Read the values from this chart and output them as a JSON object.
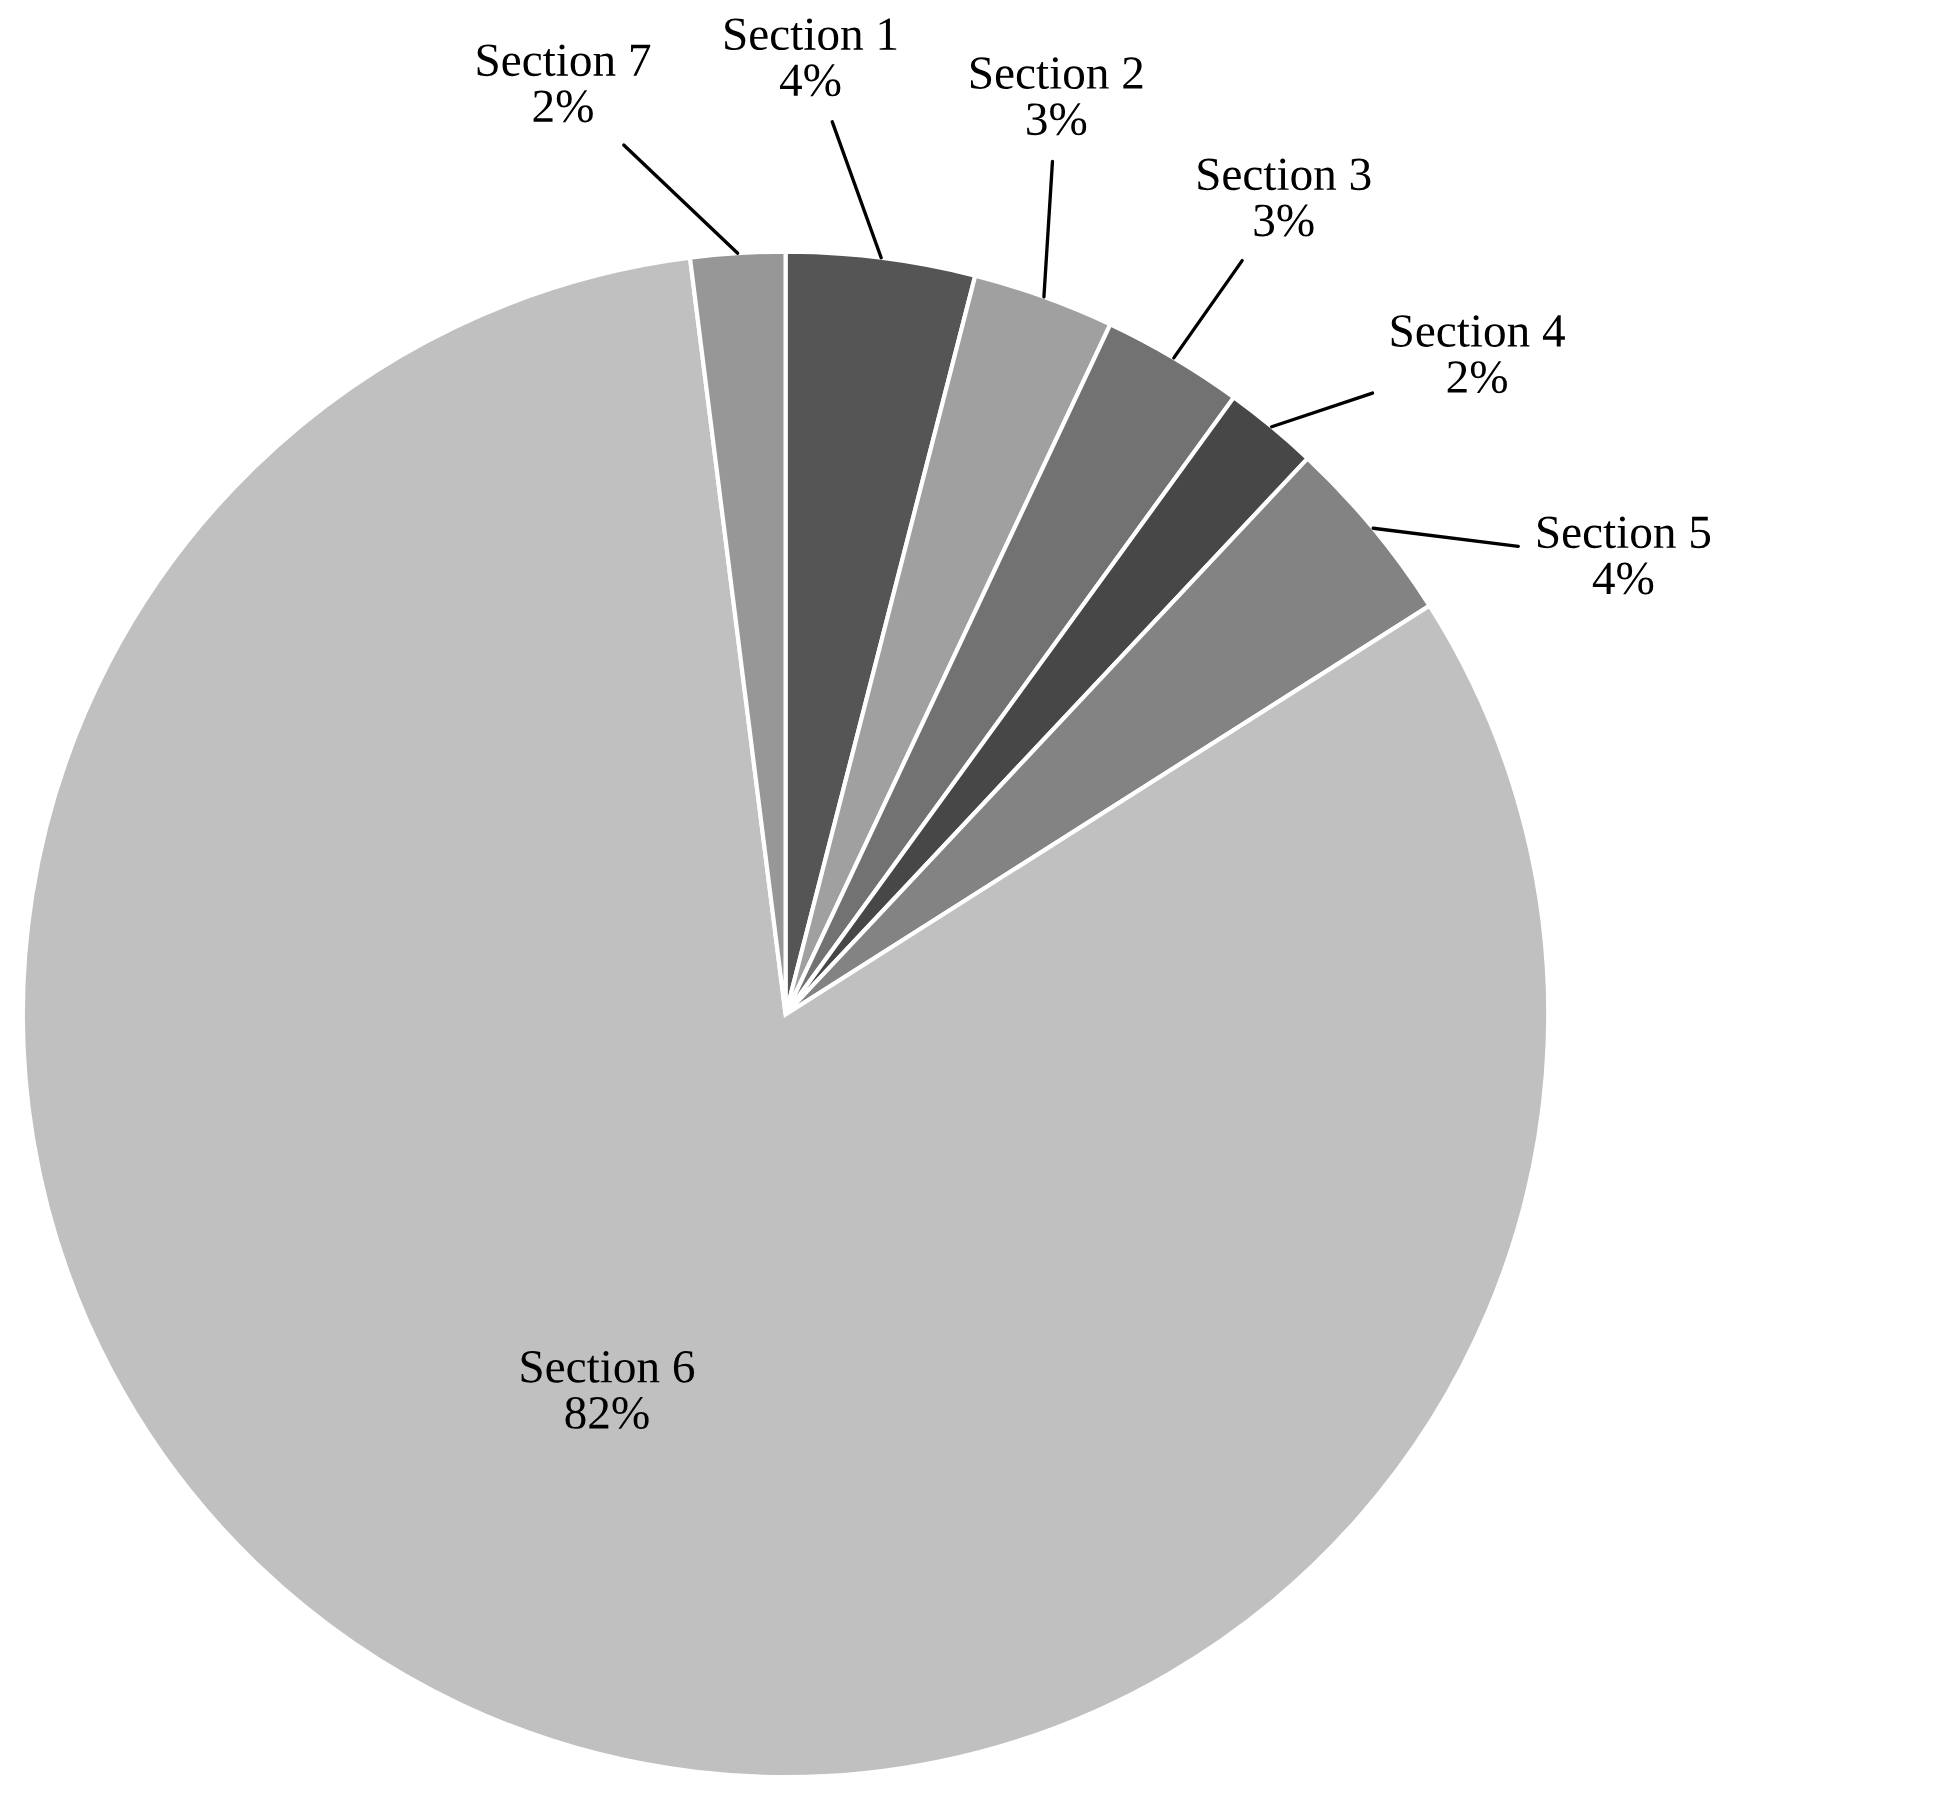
{
  "chart_data": {
    "type": "pie",
    "categories": [
      "Section 1",
      "Section 2",
      "Section 3",
      "Section 4",
      "Section 5",
      "Section 6",
      "Section 7"
    ],
    "values": [
      4,
      3,
      3,
      2,
      4,
      82,
      2
    ],
    "value_labels": [
      "4%",
      "3%",
      "3%",
      "2%",
      "4%",
      "82%",
      "2%"
    ],
    "colors": [
      "#555555",
      "#a0a0a0",
      "#727272",
      "#474747",
      "#838383",
      "#c0c0c0",
      "#979797"
    ]
  }
}
